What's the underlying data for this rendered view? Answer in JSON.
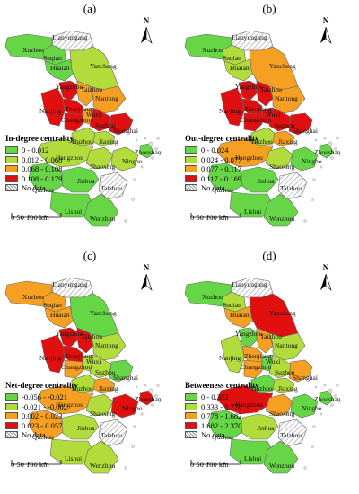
{
  "panels": [
    {
      "label": "(a)",
      "legend_title": "In-degree centrality",
      "classes": [
        {
          "range": "0 - 0.012",
          "color": "#66d646"
        },
        {
          "range": "0.012 - 0.068",
          "color": "#b2dc3c"
        },
        {
          "range": "0.068 - 0.108",
          "color": "#f5a023"
        },
        {
          "range": "0.108 - 0.179",
          "color": "#e01010"
        }
      ],
      "nodata": "No data",
      "class_of": {
        "Xuzhou": 0,
        "Suqian": 0,
        "Huaian": 0,
        "Yancheng": 1,
        "Yangzhou": 3,
        "Taizhou": 2,
        "Nantong": 2,
        "Zhenjiang": 3,
        "Nanjing": 3,
        "Changzhou": 3,
        "Wuxi": 2,
        "Suzhou": 3,
        "Shanghai": 3,
        "Huzhou": 1,
        "Jiaxing": 1,
        "Hangzhou": 1,
        "Shaoxing": 1,
        "Ningbo": 1,
        "Zhoushan": 0,
        "Jinhua": 0,
        "Taizhou2": -1,
        "Quzhou": 0,
        "Lishui": 0,
        "Wenzhou": 0,
        "Lianyungang": -1
      }
    },
    {
      "label": "(b)",
      "legend_title": "Out-degree centrality",
      "classes": [
        {
          "range": "0 - 0.024",
          "color": "#66d646"
        },
        {
          "range": "0.024 - 0.077",
          "color": "#b2dc3c"
        },
        {
          "range": "0.077 - 0.117",
          "color": "#f5a023"
        },
        {
          "range": "0.117 - 0.169",
          "color": "#e01010"
        }
      ],
      "nodata": "No data",
      "class_of": {
        "Xuzhou": 0,
        "Suqian": 1,
        "Huaian": 1,
        "Yancheng": 2,
        "Yangzhou": 3,
        "Taizhou": 3,
        "Nantong": 2,
        "Zhenjiang": 3,
        "Nanjing": 3,
        "Changzhou": 3,
        "Wuxi": 3,
        "Suzhou": 3,
        "Shanghai": 3,
        "Huzhou": 1,
        "Jiaxing": 2,
        "Hangzhou": 2,
        "Shaoxing": 1,
        "Ningbo": 0,
        "Zhoushan": 0,
        "Jinhua": 0,
        "Taizhou2": -1,
        "Quzhou": 0,
        "Lishui": 0,
        "Wenzhou": 0,
        "Lianyungang": -1
      }
    },
    {
      "label": "(c)",
      "legend_title": "Net-degree centrality",
      "classes": [
        {
          "range": "-0.056 - -0.021",
          "color": "#66d646"
        },
        {
          "range": "-0.021 - -0.002",
          "color": "#b2dc3c"
        },
        {
          "range": "0.002 - 0.023",
          "color": "#f5a023"
        },
        {
          "range": "0.023 - 0.057",
          "color": "#e01010"
        }
      ],
      "nodata": "No data",
      "class_of": {
        "Xuzhou": 2,
        "Suqian": 2,
        "Huaian": 2,
        "Yancheng": 0,
        "Yangzhou": 3,
        "Taizhou": 3,
        "Nantong": 1,
        "Zhenjiang": 3,
        "Nanjing": 3,
        "Changzhou": 2,
        "Wuxi": 1,
        "Suzhou": 1,
        "Shanghai": 0,
        "Huzhou": 1,
        "Jiaxing": 2,
        "Hangzhou": 2,
        "Shaoxing": 1,
        "Ningbo": 3,
        "Zhoushan": 3,
        "Jinhua": 1,
        "Taizhou2": -1,
        "Quzhou": 2,
        "Lishui": 1,
        "Wenzhou": 1,
        "Lianyungang": -1
      }
    },
    {
      "label": "(d)",
      "legend_title": "Betweeness centrality",
      "classes": [
        {
          "range": "0 - 0.333",
          "color": "#66d646"
        },
        {
          "range": "0.333 - 0.778",
          "color": "#b2dc3c"
        },
        {
          "range": "0.778 - 1.682",
          "color": "#f5a023"
        },
        {
          "range": "1.682 - 2.370",
          "color": "#e01010"
        }
      ],
      "nodata": "No data",
      "class_of": {
        "Xuzhou": 0,
        "Suqian": 1,
        "Huaian": 2,
        "Yancheng": 3,
        "Yangzhou": 0,
        "Taizhou": 2,
        "Nantong": 1,
        "Zhenjiang": 2,
        "Nanjing": 1,
        "Changzhou": 2,
        "Wuxi": 0,
        "Suzhou": 1,
        "Shanghai": 2,
        "Huzhou": 0,
        "Jiaxing": 1,
        "Hangzhou": 3,
        "Shaoxing": 2,
        "Ningbo": 0,
        "Zhoushan": 0,
        "Jinhua": 1,
        "Taizhou2": -1,
        "Quzhou": 0,
        "Lishui": 0,
        "Wenzhou": 0,
        "Lianyungang": -1
      }
    }
  ],
  "north_label": "N",
  "scale_label": "0  50 100 km",
  "cities": [
    {
      "id": "Lianyungang",
      "label": "Lianyungang"
    },
    {
      "id": "Xuzhou",
      "label": "Xuzhou"
    },
    {
      "id": "Suqian",
      "label": "Suqian"
    },
    {
      "id": "Huaian",
      "label": "Huaian"
    },
    {
      "id": "Yancheng",
      "label": "Yancheng"
    },
    {
      "id": "Yangzhou",
      "label": "Yangzhou"
    },
    {
      "id": "Taizhou",
      "label": "Taizhou"
    },
    {
      "id": "Nantong",
      "label": "Nantong"
    },
    {
      "id": "Zhenjiang",
      "label": "Zhenjiang"
    },
    {
      "id": "Nanjing",
      "label": "Nanjing"
    },
    {
      "id": "Changzhou",
      "label": "Changzhou"
    },
    {
      "id": "Wuxi",
      "label": "Wuxi"
    },
    {
      "id": "Suzhou",
      "label": "Suzhou"
    },
    {
      "id": "Shanghai",
      "label": "Shanghai"
    },
    {
      "id": "Huzhou",
      "label": "Huzhou"
    },
    {
      "id": "Jiaxing",
      "label": "Jiaxing"
    },
    {
      "id": "Hangzhou",
      "label": "Hangzhou"
    },
    {
      "id": "Shaoxing",
      "label": "Shaoxing"
    },
    {
      "id": "Ningbo",
      "label": "Ningbo"
    },
    {
      "id": "Zhoushan",
      "label": "Zhoushan"
    },
    {
      "id": "Jinhua",
      "label": "Jinhua"
    },
    {
      "id": "Taizhou2",
      "label": "Taizhou"
    },
    {
      "id": "Quzhou",
      "label": "Quzhou"
    },
    {
      "id": "Lishui",
      "label": "Lishui"
    },
    {
      "id": "Wenzhou",
      "label": "Wenzhou"
    }
  ]
}
